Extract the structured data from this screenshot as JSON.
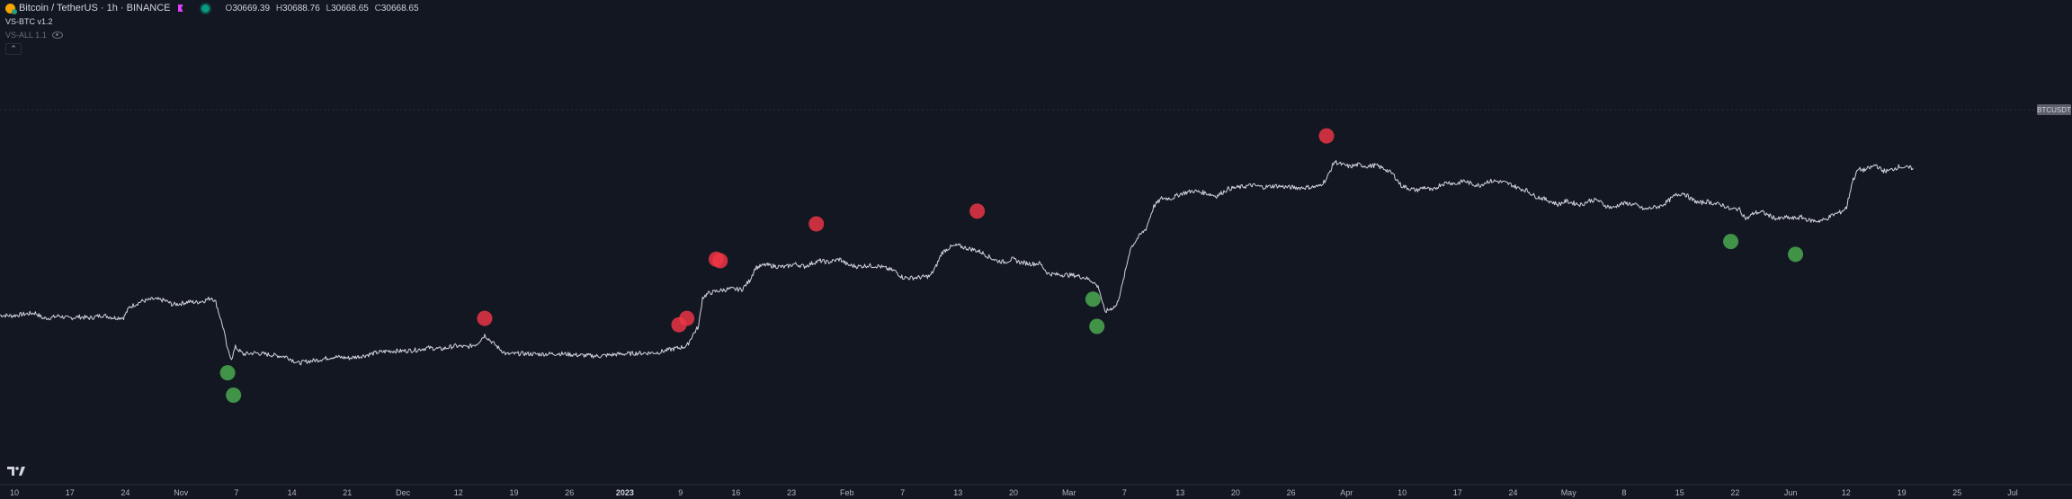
{
  "header": {
    "symbol_title": "Bitcoin / TetherUS · 1h · BINANCE",
    "ohlc": [
      {
        "key": "O",
        "value": "30669.39"
      },
      {
        "key": "H",
        "value": "30688.76"
      },
      {
        "key": "L",
        "value": "30668.65"
      },
      {
        "key": "C",
        "value": "30668.65"
      }
    ],
    "indicator1": "VS-BTC v1.2",
    "indicator2": "VS-ALL 1.1",
    "icons": [
      "coin-icon",
      "flag-icon",
      "status-dot-icon",
      "eye-icon",
      "chevron-up-icon",
      "tradingview-logo-icon"
    ]
  },
  "colors": {
    "background": "#131722",
    "price_line": "#d1d4dc",
    "sell_signal": "#f23645",
    "buy_signal": "#4caf50",
    "badge": "#5d606b"
  },
  "chart_data": {
    "type": "line",
    "series_name": "BTCUSDT",
    "price_badge": "BTCUSDT",
    "x_tick_labels": [
      "10",
      "17",
      "24",
      "Nov",
      "7",
      "14",
      "21",
      "Dec",
      "12",
      "19",
      "26",
      "2023",
      "9",
      "16",
      "23",
      "Feb",
      "7",
      "13",
      "20",
      "Mar",
      "7",
      "13",
      "20",
      "26",
      "Apr",
      "10",
      "17",
      "24",
      "May",
      "8",
      "15",
      "22",
      "Jun",
      "12",
      "19",
      "25",
      "Jul"
    ],
    "bold_ticks": [
      "2023"
    ],
    "x_range": [
      0,
      1000
    ],
    "y_range": [
      0,
      1000
    ],
    "price_path": [
      [
        0,
        330
      ],
      [
        6,
        328
      ],
      [
        12,
        333
      ],
      [
        18,
        337
      ],
      [
        22,
        320
      ],
      [
        26,
        322
      ],
      [
        30,
        328
      ],
      [
        35,
        320
      ],
      [
        40,
        325
      ],
      [
        46,
        321
      ],
      [
        52,
        330
      ],
      [
        58,
        322
      ],
      [
        63,
        323
      ],
      [
        66,
        355
      ],
      [
        72,
        373
      ],
      [
        78,
        380
      ],
      [
        84,
        376
      ],
      [
        88,
        363
      ],
      [
        92,
        366
      ],
      [
        96,
        372
      ],
      [
        100,
        370
      ],
      [
        104,
        375
      ],
      [
        108,
        385
      ],
      [
        110,
        370
      ],
      [
        114,
        285
      ],
      [
        116,
        220
      ],
      [
        118,
        195
      ],
      [
        120,
        230
      ],
      [
        124,
        208
      ],
      [
        130,
        212
      ],
      [
        138,
        206
      ],
      [
        146,
        200
      ],
      [
        152,
        180
      ],
      [
        156,
        185
      ],
      [
        162,
        190
      ],
      [
        170,
        200
      ],
      [
        178,
        196
      ],
      [
        186,
        204
      ],
      [
        192,
        213
      ],
      [
        198,
        218
      ],
      [
        205,
        218
      ],
      [
        212,
        221
      ],
      [
        218,
        228
      ],
      [
        225,
        224
      ],
      [
        232,
        234
      ],
      [
        238,
        230
      ],
      [
        243,
        240
      ],
      [
        247,
        268
      ],
      [
        250,
        250
      ],
      [
        254,
        228
      ],
      [
        258,
        208
      ],
      [
        265,
        210
      ],
      [
        275,
        208
      ],
      [
        285,
        210
      ],
      [
        295,
        205
      ],
      [
        305,
        202
      ],
      [
        315,
        208
      ],
      [
        325,
        211
      ],
      [
        335,
        213
      ],
      [
        341,
        222
      ],
      [
        346,
        228
      ],
      [
        350,
        233
      ],
      [
        353,
        268
      ],
      [
        356,
        295
      ],
      [
        358,
        385
      ],
      [
        361,
        398
      ],
      [
        366,
        406
      ],
      [
        372,
        412
      ],
      [
        378,
        410
      ],
      [
        382,
        438
      ],
      [
        385,
        478
      ],
      [
        390,
        487
      ],
      [
        395,
        483
      ],
      [
        400,
        480
      ],
      [
        405,
        490
      ],
      [
        410,
        482
      ],
      [
        415,
        495
      ],
      [
        418,
        500
      ],
      [
        422,
        495
      ],
      [
        428,
        505
      ],
      [
        432,
        487
      ],
      [
        437,
        482
      ],
      [
        442,
        485
      ],
      [
        448,
        483
      ],
      [
        452,
        475
      ],
      [
        456,
        468
      ],
      [
        460,
        448
      ],
      [
        464,
        446
      ],
      [
        470,
        449
      ],
      [
        474,
        452
      ],
      [
        477,
        482
      ],
      [
        480,
        525
      ],
      [
        484,
        542
      ],
      [
        488,
        548
      ],
      [
        492,
        540
      ],
      [
        496,
        535
      ],
      [
        500,
        527
      ],
      [
        504,
        512
      ],
      [
        508,
        500
      ],
      [
        512,
        496
      ],
      [
        516,
        505
      ],
      [
        520,
        495
      ],
      [
        526,
        490
      ],
      [
        530,
        492
      ],
      [
        534,
        460
      ],
      [
        538,
        457
      ],
      [
        543,
        456
      ],
      [
        548,
        454
      ],
      [
        553,
        447
      ],
      [
        557,
        435
      ],
      [
        560,
        415
      ],
      [
        563,
        340
      ],
      [
        566,
        350
      ],
      [
        569,
        360
      ],
      [
        572,
        425
      ],
      [
        576,
        538
      ],
      [
        580,
        573
      ],
      [
        584,
        600
      ],
      [
        588,
        670
      ],
      [
        592,
        695
      ],
      [
        597,
        695
      ],
      [
        602,
        710
      ],
      [
        608,
        718
      ],
      [
        614,
        712
      ],
      [
        620,
        702
      ],
      [
        626,
        725
      ],
      [
        632,
        730
      ],
      [
        638,
        736
      ],
      [
        644,
        730
      ],
      [
        650,
        734
      ],
      [
        656,
        730
      ],
      [
        662,
        728
      ],
      [
        668,
        730
      ],
      [
        672,
        732
      ],
      [
        676,
        755
      ],
      [
        680,
        810
      ],
      [
        684,
        800
      ],
      [
        688,
        794
      ],
      [
        692,
        800
      ],
      [
        697,
        795
      ],
      [
        701,
        798
      ],
      [
        706,
        786
      ],
      [
        710,
        770
      ],
      [
        714,
        735
      ],
      [
        718,
        726
      ],
      [
        722,
        720
      ],
      [
        726,
        730
      ],
      [
        730,
        718
      ],
      [
        734,
        738
      ],
      [
        738,
        745
      ],
      [
        742,
        740
      ],
      [
        746,
        750
      ],
      [
        750,
        740
      ],
      [
        754,
        735
      ],
      [
        758,
        748
      ],
      [
        762,
        749
      ],
      [
        766,
        745
      ],
      [
        770,
        738
      ],
      [
        774,
        726
      ],
      [
        778,
        720
      ],
      [
        782,
        702
      ],
      [
        786,
        695
      ],
      [
        790,
        686
      ],
      [
        794,
        676
      ],
      [
        798,
        686
      ],
      [
        802,
        680
      ],
      [
        806,
        675
      ],
      [
        810,
        688
      ],
      [
        814,
        690
      ],
      [
        818,
        672
      ],
      [
        822,
        665
      ],
      [
        826,
        678
      ],
      [
        830,
        679
      ],
      [
        834,
        673
      ],
      [
        838,
        660
      ],
      [
        842,
        666
      ],
      [
        846,
        670
      ],
      [
        850,
        686
      ],
      [
        854,
        705
      ],
      [
        858,
        712
      ],
      [
        862,
        692
      ],
      [
        866,
        680
      ],
      [
        870,
        685
      ],
      [
        874,
        678
      ],
      [
        878,
        674
      ],
      [
        882,
        660
      ],
      [
        886,
        663
      ],
      [
        890,
        630
      ],
      [
        894,
        650
      ],
      [
        898,
        652
      ],
      [
        902,
        640
      ],
      [
        906,
        630
      ],
      [
        910,
        635
      ],
      [
        914,
        632
      ],
      [
        918,
        636
      ],
      [
        922,
        626
      ],
      [
        926,
        624
      ],
      [
        930,
        628
      ],
      [
        934,
        643
      ],
      [
        938,
        652
      ],
      [
        941,
        666
      ],
      [
        944,
        748
      ],
      [
        947,
        786
      ],
      [
        950,
        783
      ],
      [
        953,
        790
      ],
      [
        956,
        800
      ],
      [
        959,
        782
      ],
      [
        962,
        780
      ],
      [
        965,
        787
      ],
      [
        968,
        795
      ],
      [
        970,
        792
      ],
      [
        972,
        790
      ],
      [
        975,
        790
      ]
    ],
    "sell_signals": [
      {
        "x": 247,
        "y": 320
      },
      {
        "x": 346,
        "y": 300
      },
      {
        "x": 350,
        "y": 320
      },
      {
        "x": 365,
        "y": 505
      },
      {
        "x": 367,
        "y": 500
      },
      {
        "x": 416,
        "y": 615
      },
      {
        "x": 498,
        "y": 655
      },
      {
        "x": 676,
        "y": 890
      }
    ],
    "buy_signals": [
      {
        "x": 116,
        "y": 150
      },
      {
        "x": 119,
        "y": 80
      },
      {
        "x": 557,
        "y": 380
      },
      {
        "x": 559,
        "y": 295
      },
      {
        "x": 882,
        "y": 560
      },
      {
        "x": 915,
        "y": 520
      }
    ]
  }
}
